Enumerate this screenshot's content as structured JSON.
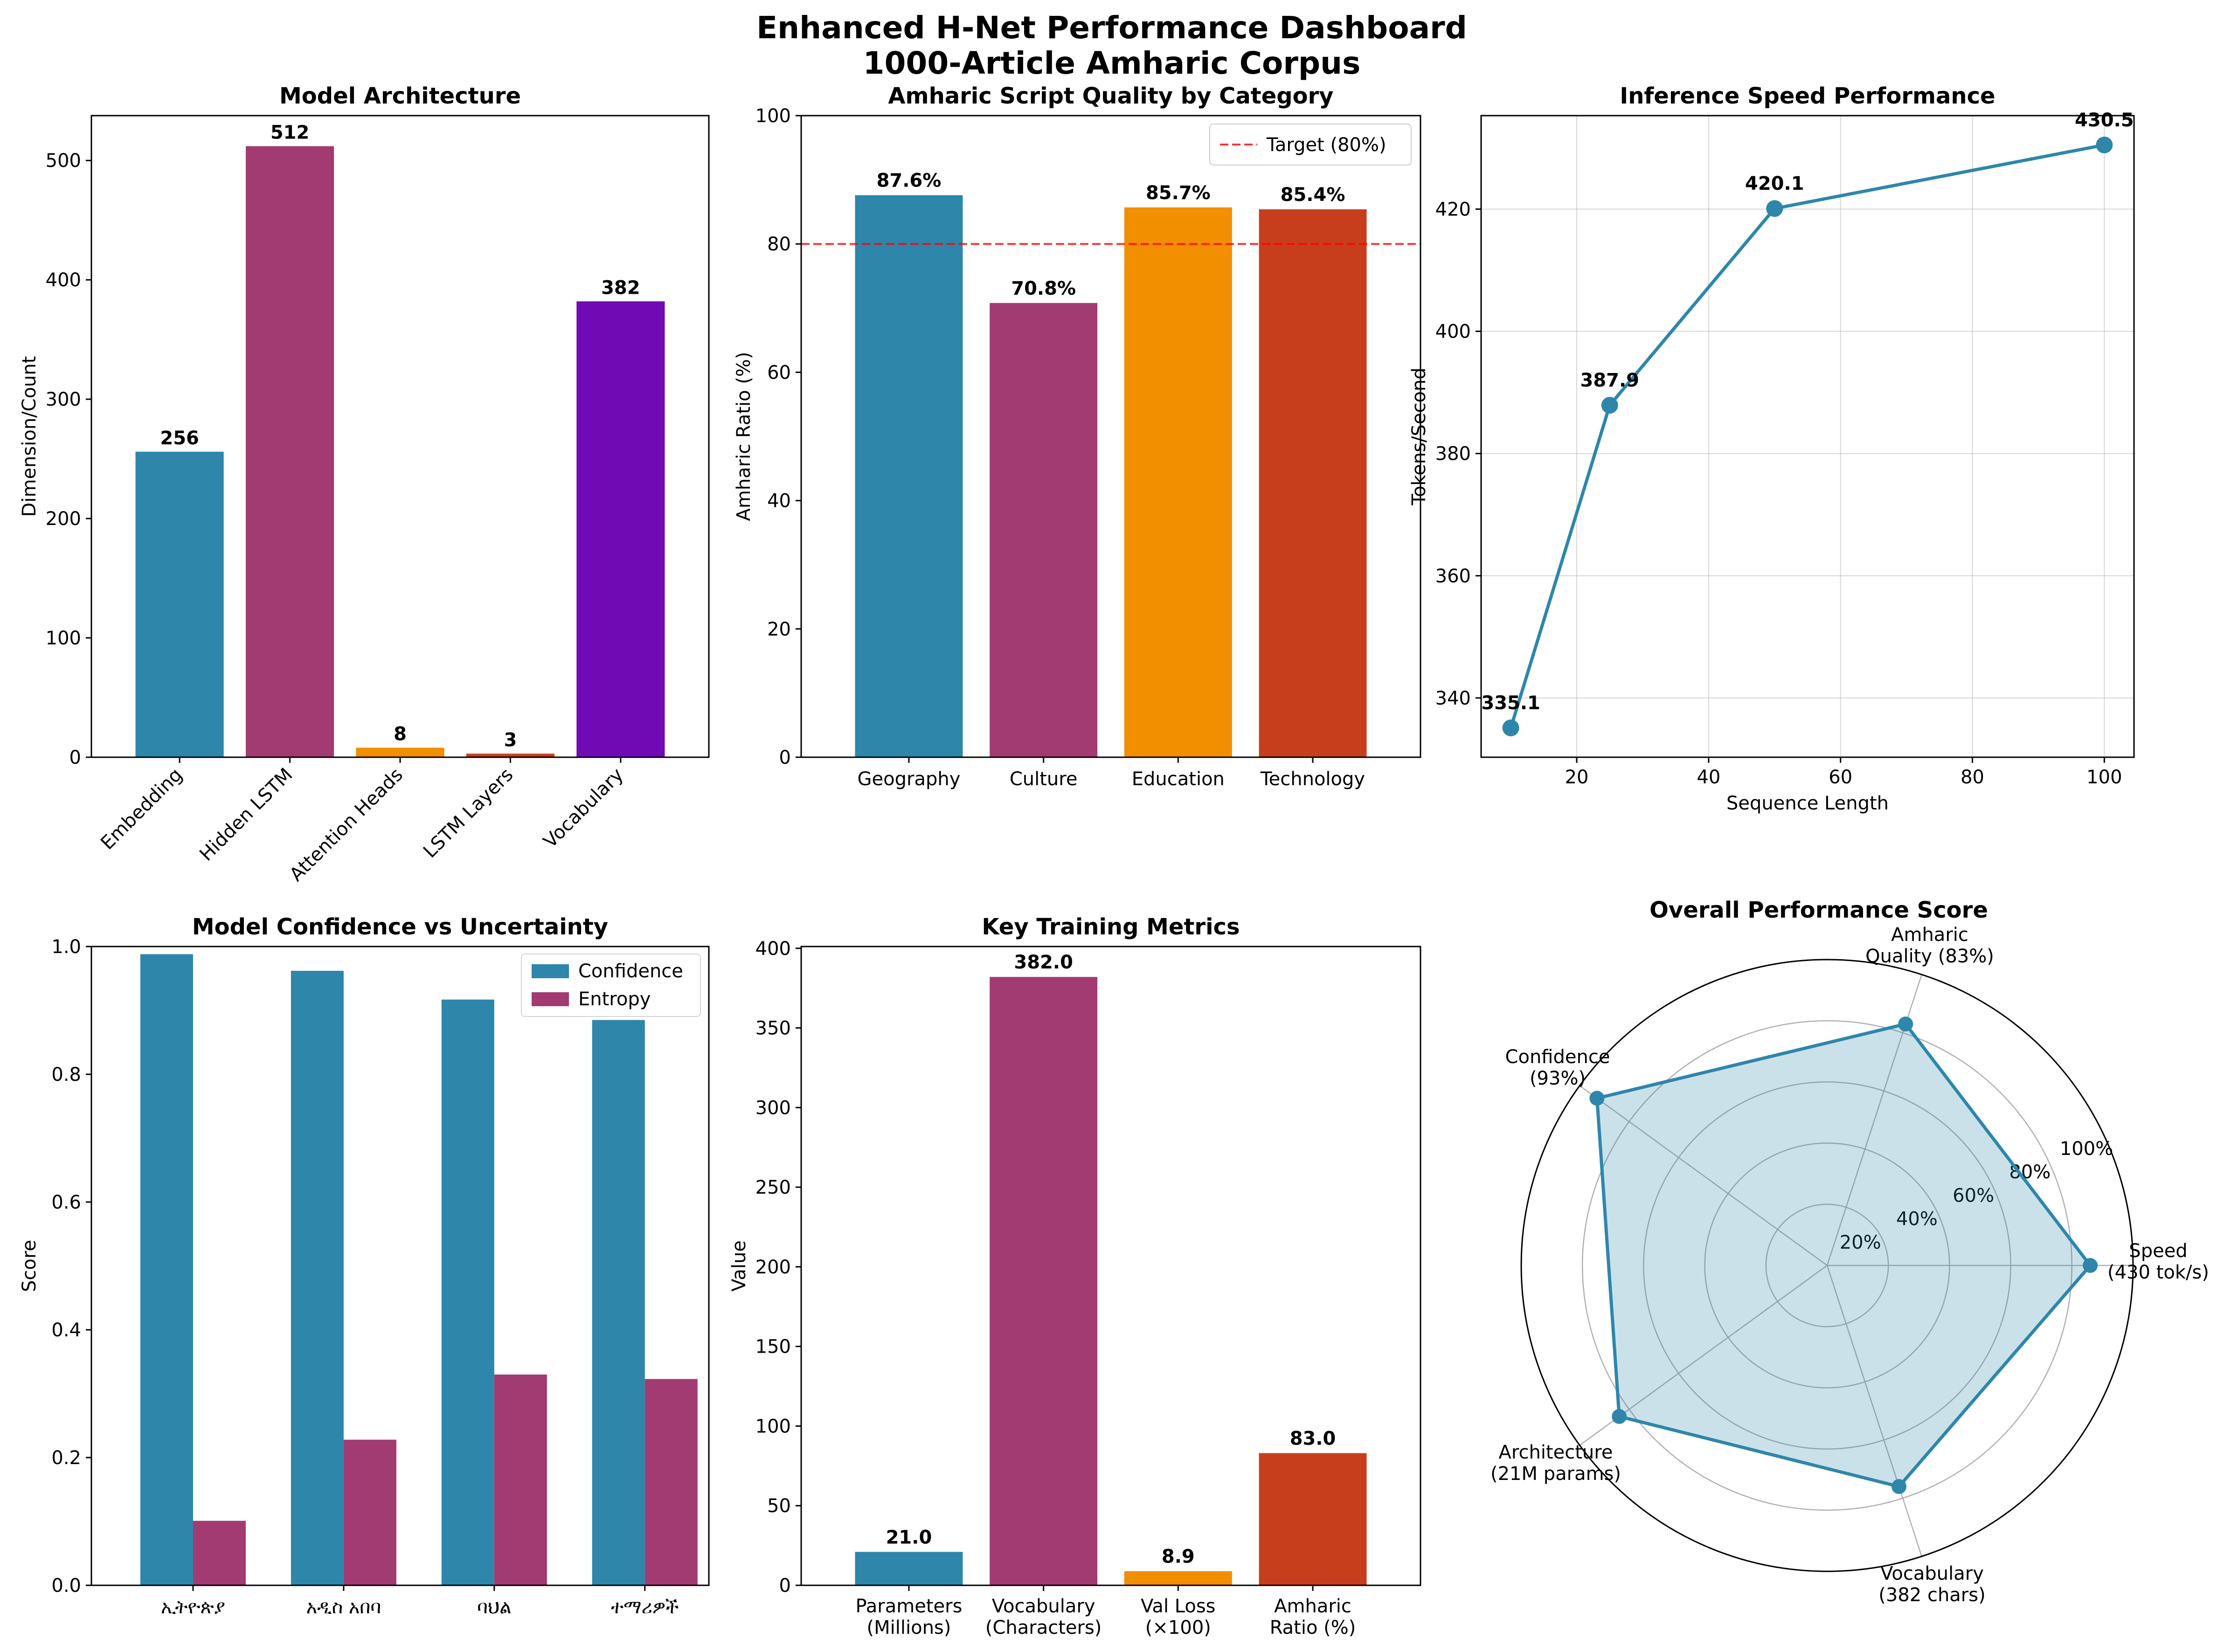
{
  "title_line1": "Enhanced H-Net Performance Dashboard",
  "title_line2": "1000-Article Amharic Corpus",
  "colors": {
    "blue": "#2E86AB",
    "magenta": "#A23B72",
    "orange": "#F18F01",
    "red": "#C73E1D",
    "purple": "#6F0AB5",
    "target": "#FF0000"
  },
  "chart_data": [
    {
      "id": "architecture",
      "type": "bar",
      "title": "Model Architecture",
      "ylabel": "Dimension/Count",
      "xlabel": "",
      "categories": [
        "Embedding",
        "Hidden LSTM",
        "Attention Heads",
        "LSTM Layers",
        "Vocabulary"
      ],
      "values": [
        256,
        512,
        8,
        3,
        382
      ],
      "value_labels": [
        "256",
        "512",
        "8",
        "3",
        "382"
      ],
      "ylim": [
        0,
        537.6
      ],
      "yticks": [
        0,
        100,
        200,
        300,
        400,
        500
      ],
      "grid": false
    },
    {
      "id": "quality",
      "type": "bar",
      "title": "Amharic Script Quality by Category",
      "ylabel": "Amharic Ratio (%)",
      "xlabel": "",
      "categories": [
        "Geography",
        "Culture",
        "Education",
        "Technology"
      ],
      "values": [
        87.6,
        70.8,
        85.7,
        85.4
      ],
      "value_labels": [
        "87.6%",
        "70.8%",
        "85.7%",
        "85.4%"
      ],
      "ylim": [
        0,
        100
      ],
      "yticks": [
        0,
        20,
        40,
        60,
        80,
        100
      ],
      "reference_line": {
        "value": 80,
        "label": "Target (80%)"
      },
      "legend": "top-right",
      "grid": false
    },
    {
      "id": "speed",
      "type": "line",
      "title": "Inference Speed Performance",
      "xlabel": "Sequence Length",
      "ylabel": "Tokens/Second",
      "x": [
        10,
        25,
        50,
        100
      ],
      "y": [
        335.1,
        387.9,
        420.1,
        430.5
      ],
      "point_labels": [
        "335.1",
        "387.9",
        "420.1",
        "430.5"
      ],
      "xlim": [
        5.5,
        104.5
      ],
      "ylim": [
        330.3,
        435.3
      ],
      "xticks": [
        20,
        40,
        60,
        80,
        100
      ],
      "yticks": [
        340,
        360,
        380,
        400,
        420
      ],
      "grid": true
    },
    {
      "id": "confidence",
      "type": "bar",
      "title": "Model Confidence vs Uncertainty",
      "ylabel": "Score",
      "xlabel": "",
      "categories": [
        "ኢትዮጵያ",
        "አዲስ አበባ",
        "ባህል",
        "ተማሪዎች"
      ],
      "series": [
        {
          "name": "Confidence",
          "values": [
            0.988,
            0.962,
            0.917,
            0.885
          ]
        },
        {
          "name": "Entropy",
          "values": [
            0.101,
            0.228,
            0.33,
            0.323
          ]
        }
      ],
      "ylim": [
        0,
        1.0
      ],
      "yticks": [
        0.0,
        0.2,
        0.4,
        0.6,
        0.8,
        1.0
      ],
      "ytick_labels": [
        "0.0",
        "0.2",
        "0.4",
        "0.6",
        "0.8",
        "1.0"
      ],
      "legend": "top-right",
      "grid": false
    },
    {
      "id": "training",
      "type": "bar",
      "title": "Key Training Metrics",
      "ylabel": "Value",
      "xlabel": "",
      "categories": [
        [
          "Parameters",
          "(Millions)"
        ],
        [
          "Vocabulary",
          "(Characters)"
        ],
        [
          "Val Loss",
          "(×100)"
        ],
        [
          "Amharic",
          "Ratio (%)"
        ]
      ],
      "values": [
        21.0,
        382.0,
        8.9,
        83.0
      ],
      "value_labels": [
        "21.0",
        "382.0",
        "8.9",
        "83.0"
      ],
      "ylim": [
        0,
        401.1
      ],
      "yticks": [
        0,
        50,
        100,
        150,
        200,
        250,
        300,
        350,
        400
      ],
      "grid": false
    },
    {
      "id": "overall",
      "type": "radar",
      "title": "Overall Performance Score",
      "axes": [
        [
          "Speed",
          "(430 tok/s)"
        ],
        [
          "Amharic",
          "Quality (83%)"
        ],
        [
          "Confidence",
          "(93%)"
        ],
        [
          "Architecture",
          "(21M params)"
        ],
        [
          "Vocabulary",
          "(382 chars)"
        ]
      ],
      "values": [
        86,
        83,
        93,
        84,
        76
      ],
      "rlim": [
        0,
        100
      ],
      "rticks": [
        20,
        40,
        60,
        80,
        100
      ],
      "rtick_labels": [
        "20%",
        "40%",
        "60%",
        "80%",
        "100%"
      ],
      "grid": true
    }
  ]
}
